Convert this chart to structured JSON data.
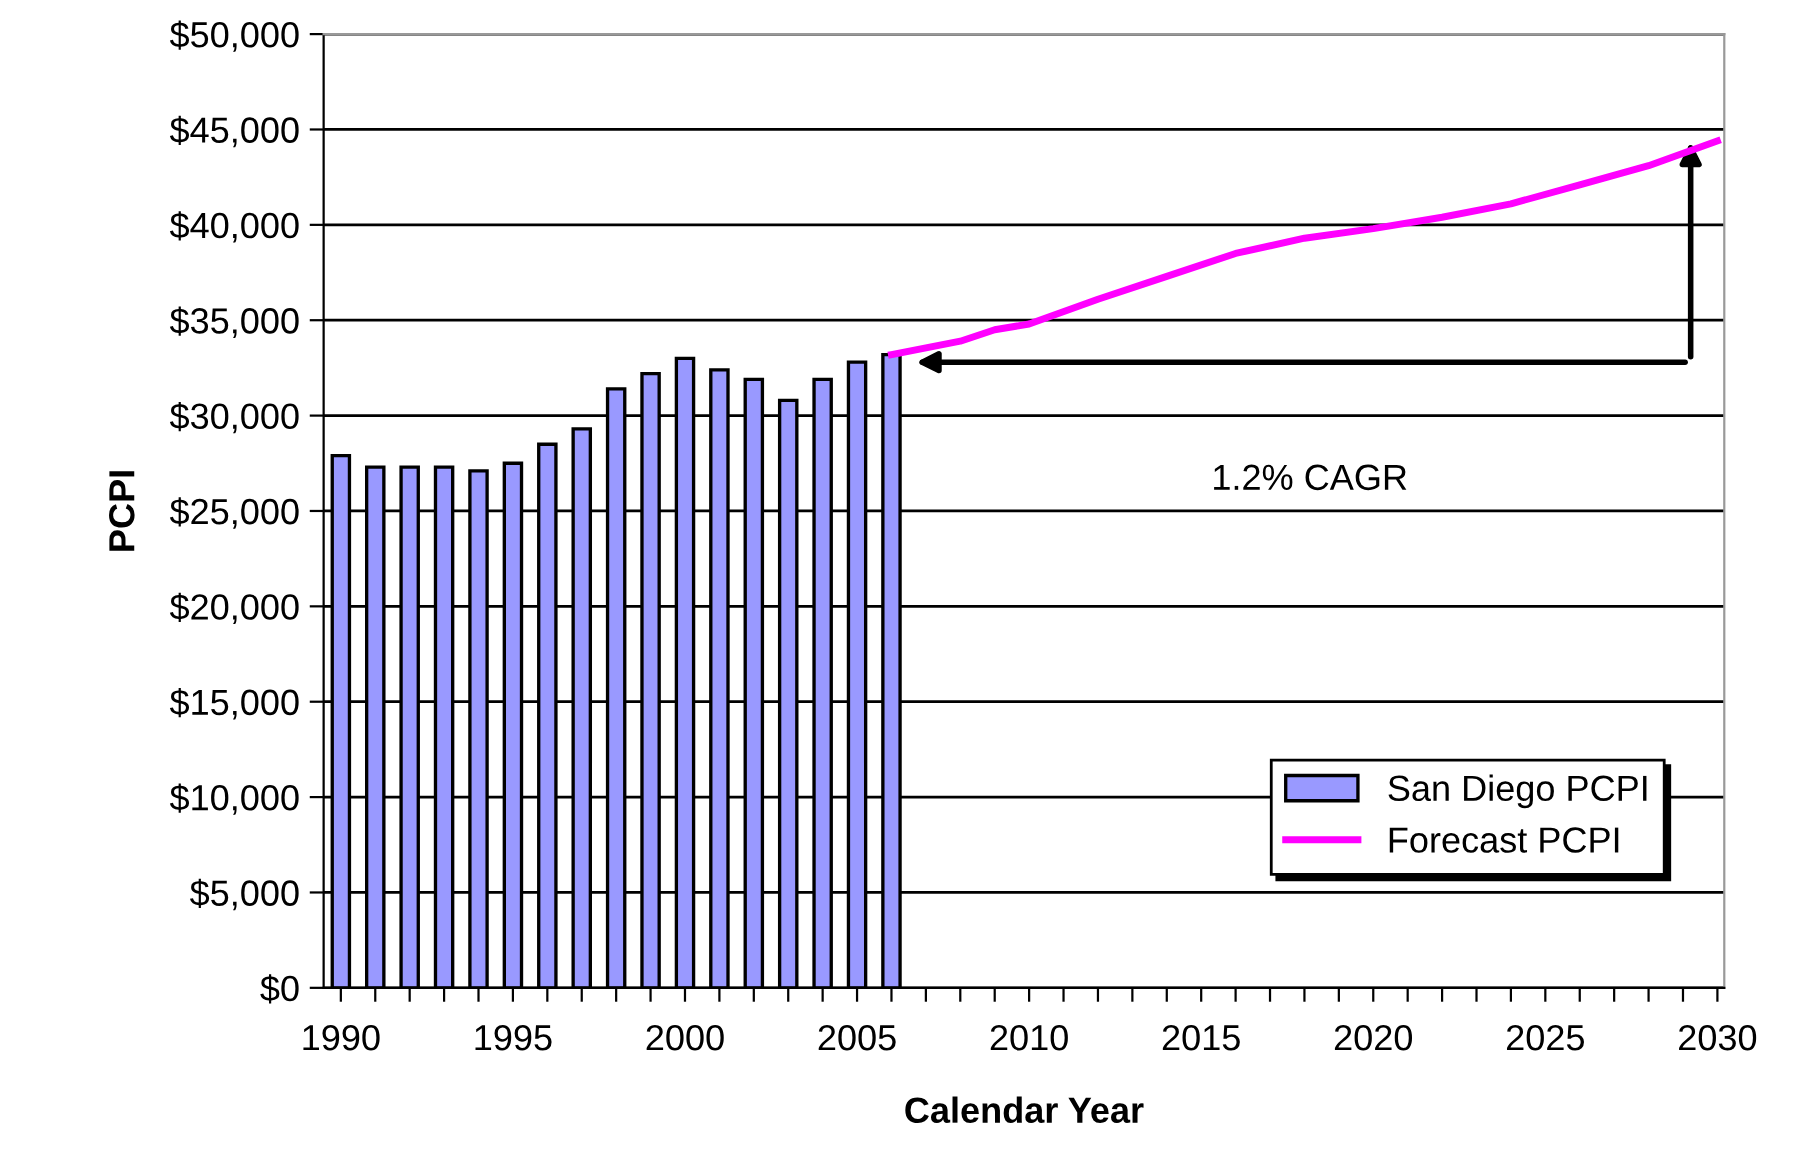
{
  "chart_data": {
    "type": "bar",
    "xlabel": "Calendar Year",
    "ylabel": "PCPI",
    "series": [
      {
        "name": "San Diego PCPI",
        "color": "#9999ff",
        "x": [
          1990,
          1991,
          1992,
          1993,
          1994,
          1995,
          1996,
          1997,
          1998,
          1999,
          2000,
          2001,
          2002,
          2003,
          2004,
          2005,
          2006
        ],
        "values": [
          27900,
          27300,
          27300,
          27300,
          27100,
          27500,
          28500,
          29300,
          31400,
          32200,
          33000,
          32400,
          31900,
          30800,
          31900,
          32800,
          33200
        ]
      },
      {
        "name": "Forecast PCPI",
        "type": "line",
        "color": "#ff00ff",
        "x": [
          2006,
          2008,
          2009,
          2010,
          2012,
          2014,
          2016,
          2018,
          2020,
          2022,
          2024,
          2026,
          2028,
          2030
        ],
        "values": [
          33200,
          33900,
          34500,
          34800,
          36100,
          37300,
          38500,
          39300,
          39800,
          40400,
          41100,
          42100,
          43100,
          44400
        ]
      }
    ],
    "xlim": [
      1989.5,
      2030.2
    ],
    "xticks": [
      1990,
      {
        "value": 1991,
        "label": null
      },
      {
        "value": 1992,
        "label": null
      },
      {
        "value": 1993,
        "label": null
      },
      {
        "value": 1994,
        "label": null
      },
      1995,
      {
        "value": 1996,
        "label": null
      },
      {
        "value": 1997,
        "label": null
      },
      {
        "value": 1998,
        "label": null
      },
      {
        "value": 1999,
        "label": null
      },
      2000,
      {
        "value": 2001,
        "label": null
      },
      {
        "value": 2002,
        "label": null
      },
      {
        "value": 2003,
        "label": null
      },
      {
        "value": 2004,
        "label": null
      },
      2005,
      {
        "value": 2006,
        "label": null
      },
      {
        "value": 2007,
        "label": null
      },
      {
        "value": 2008,
        "label": null
      },
      {
        "value": 2009,
        "label": null
      },
      2010,
      {
        "value": 2011,
        "label": null
      },
      {
        "value": 2012,
        "label": null
      },
      {
        "value": 2013,
        "label": null
      },
      {
        "value": 2014,
        "label": null
      },
      2015,
      {
        "value": 2016,
        "label": null
      },
      {
        "value": 2017,
        "label": null
      },
      {
        "value": 2018,
        "label": null
      },
      {
        "value": 2019,
        "label": null
      },
      2020,
      {
        "value": 2021,
        "label": null
      },
      {
        "value": 2022,
        "label": null
      },
      {
        "value": 2023,
        "label": null
      },
      {
        "value": 2024,
        "label": null
      },
      2025,
      {
        "value": 2026,
        "label": null
      },
      {
        "value": 2027,
        "label": null
      },
      {
        "value": 2028,
        "label": null
      },
      {
        "value": 2029,
        "label": null
      },
      2030
    ],
    "ylim": [
      0,
      50000
    ],
    "yticks": [
      {
        "value": 0,
        "label": "$0"
      },
      {
        "value": 5000,
        "label": "$5,000"
      },
      {
        "value": 10000,
        "label": "$10,000"
      },
      {
        "value": 15000,
        "label": "$15,000"
      },
      {
        "value": 20000,
        "label": "$20,000"
      },
      {
        "value": 25000,
        "label": "$25,000"
      },
      {
        "value": 30000,
        "label": "$30,000"
      },
      {
        "value": 35000,
        "label": "$35,000"
      },
      {
        "value": 40000,
        "label": "$40,000"
      },
      {
        "value": 45000,
        "label": "$45,000"
      },
      {
        "value": 50000,
        "label": "$50,000"
      }
    ],
    "grid": "y",
    "legend": "bottom right",
    "annotations": [
      "1.2% CAGR"
    ]
  }
}
